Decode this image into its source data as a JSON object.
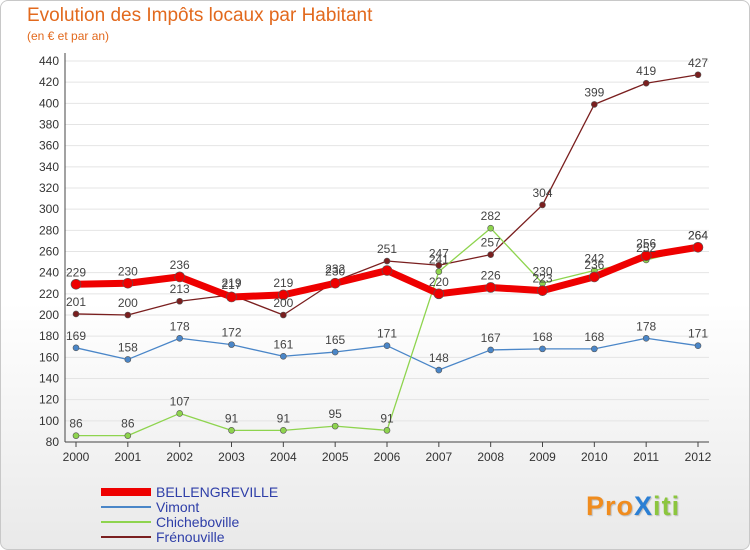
{
  "title": "Evolution des Impôts locaux par Habitant",
  "subtitle": "(en € et par an)",
  "logo": {
    "text": "ProXiti",
    "letters": [
      "P",
      "r",
      "o",
      "X",
      "i",
      "t",
      "i"
    ],
    "colors": [
      "#f08c1e",
      "#f08c1e",
      "#f08c1e",
      "#2b7fd4",
      "#8cc63e",
      "#8cc63e",
      "#8cc63e"
    ]
  },
  "chart_data": {
    "type": "line",
    "title": "Evolution des Impôts locaux par Habitant",
    "subtitle": "(en € et par an)",
    "xlabel": "",
    "ylabel": "",
    "ylim": [
      80,
      440
    ],
    "yticks": [
      80,
      100,
      120,
      140,
      160,
      180,
      200,
      220,
      240,
      260,
      280,
      300,
      320,
      340,
      360,
      380,
      400,
      420,
      440
    ],
    "grid": "horizontal",
    "legend_position": "bottom-left",
    "x": [
      "2000",
      "2001",
      "2002",
      "2003",
      "2004",
      "2005",
      "2006",
      "2007",
      "2008",
      "2009",
      "2010",
      "2011",
      "2012"
    ],
    "series": [
      {
        "name": "Frénouville",
        "color": "#7a1f1f",
        "width": 1.3,
        "marker": 3,
        "values": [
          201,
          200,
          213,
          219,
          200,
          232,
          251,
          247,
          257,
          304,
          399,
          419,
          427
        ],
        "labels": [
          "201",
          "200",
          "213",
          "219",
          "200",
          "232",
          "251",
          "247",
          "257",
          "304",
          "399",
          "419",
          "427"
        ]
      },
      {
        "name": "Vimont",
        "color": "#4a86c8",
        "width": 1.3,
        "marker": 3,
        "values": [
          169,
          158,
          178,
          172,
          161,
          165,
          171,
          148,
          167,
          168,
          168,
          178,
          171
        ],
        "labels": [
          "169",
          "158",
          "178",
          "172",
          "161",
          "165",
          "171",
          "148",
          "167",
          "168",
          "168",
          "178",
          "171"
        ]
      },
      {
        "name": "Chicheboville",
        "color": "#8ed44e",
        "width": 1.3,
        "marker": 3,
        "values": [
          86,
          86,
          107,
          91,
          91,
          95,
          91,
          241,
          282,
          230,
          242,
          252,
          264
        ],
        "labels": [
          "86",
          "86",
          "107",
          "91",
          "91",
          "95",
          "91",
          "241",
          "282",
          "230",
          "242",
          "252",
          "264"
        ]
      },
      {
        "name": "BELLENGREVILLE",
        "color": "#ee0000",
        "width": 7,
        "marker": 5,
        "values": [
          229,
          230,
          236,
          217,
          219,
          230,
          242,
          220,
          226,
          223,
          236,
          256,
          264
        ],
        "labels": [
          "229",
          "230",
          "236",
          "217",
          "219",
          "230",
          "",
          "220",
          "226",
          "223",
          "236",
          "256",
          "264"
        ]
      }
    ],
    "legend": [
      "BELLENGREVILLE",
      "Vimont",
      "Chicheboville",
      "Frénouville"
    ]
  }
}
